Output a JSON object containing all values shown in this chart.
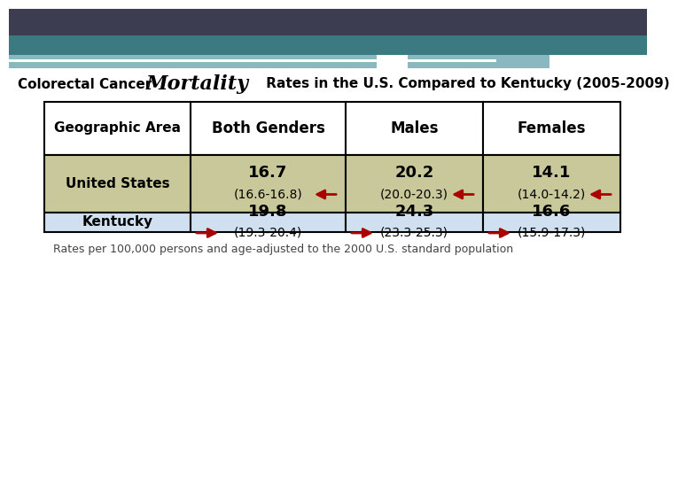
{
  "title_normal": "Colorectal Cancer ",
  "title_bold_large": "Mortality",
  "title_end": " Rates in the U.S. Compared to Kentucky (2005-2009)",
  "headers": [
    "Geographic Area",
    "Both Genders",
    "Males",
    "Females"
  ],
  "row1_label": "United States",
  "row2_label": "Kentucky",
  "us_both": "16.7",
  "us_both_ci": "(16.6-16.8)",
  "us_males": "20.2",
  "us_males_ci": "(20.0-20.3)",
  "us_females": "14.1",
  "us_females_ci": "(14.0-14.2)",
  "ky_both": "19.8",
  "ky_both_ci": "(19.3-20.4)",
  "ky_males": "24.3",
  "ky_males_ci": "(23.3-25.3)",
  "ky_females": "16.6",
  "ky_females_ci": "(15.9-17.3)",
  "footnote": "Rates per 100,000 persons and age-adjusted to the 2000 U.S. standard population",
  "header_bg": "#ffffff",
  "us_row_bg": "#c8c89a",
  "ky_row_bg": "#d0e0f0",
  "geo_us_bg": "#c8c89a",
  "geo_ky_bg": "#d0e0f0",
  "arrow_color": "#aa0000",
  "border_color": "#000000",
  "bg_color": "#ffffff",
  "dark_bar_color": "#3d3d52",
  "teal_bar_color": "#3a7a80",
  "light_teal_color": "#8ab8c0",
  "white_line_color": "#ffffff"
}
